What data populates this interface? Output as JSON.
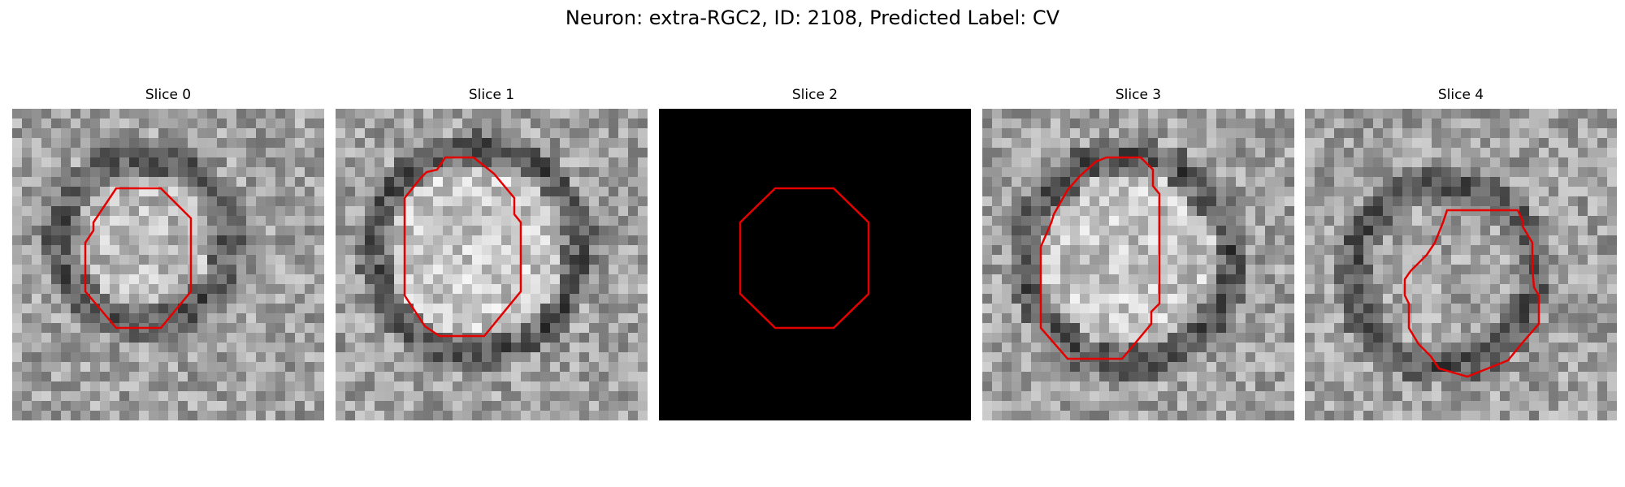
{
  "figure": {
    "title": "Neuron: extra-RGC2, ID: 2108, Predicted Label: CV",
    "contour_color": "#e50000"
  },
  "panels": [
    {
      "title": "Slice 0",
      "blank": false
    },
    {
      "title": "Slice 1",
      "blank": false
    },
    {
      "title": "Slice 2",
      "blank": true
    },
    {
      "title": "Slice 3",
      "blank": false
    },
    {
      "title": "Slice 4",
      "blank": false
    }
  ]
}
